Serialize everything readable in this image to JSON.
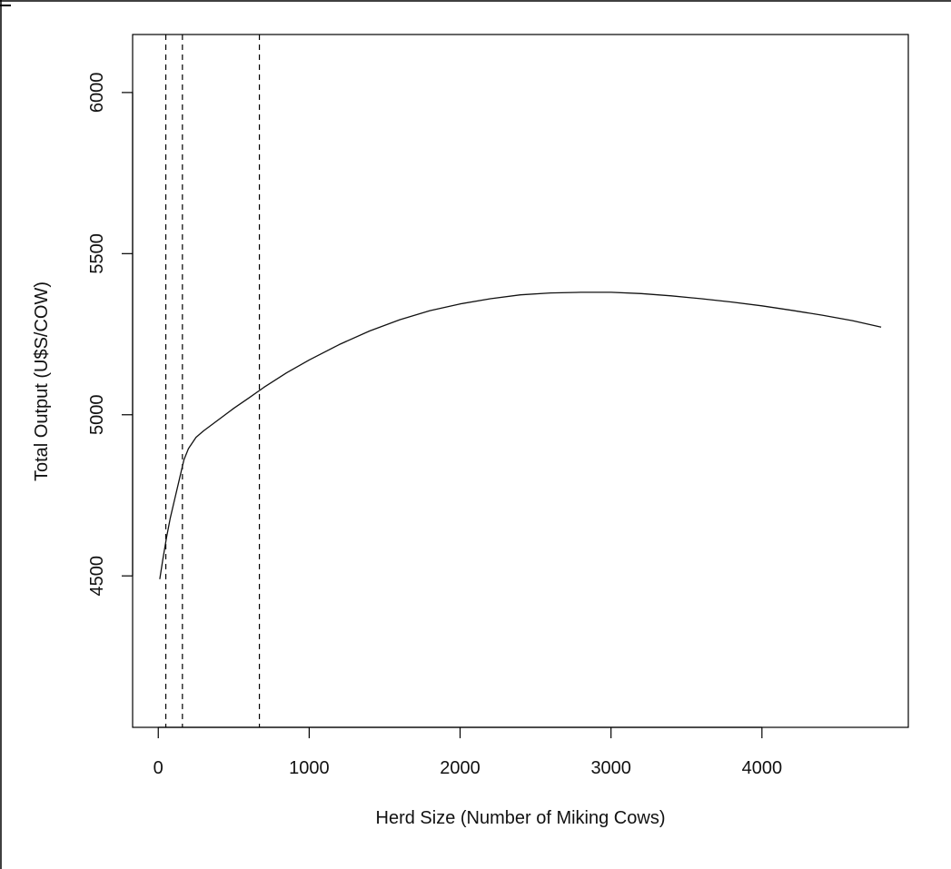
{
  "chart_data": {
    "type": "line",
    "title": "",
    "xlabel": "Herd Size (Number of Miking Cows)",
    "ylabel": "Total Output (U$S/COW)",
    "xlim": [
      -170,
      4970
    ],
    "ylim": [
      4030,
      6180
    ],
    "x_ticks": [
      0,
      1000,
      2000,
      3000,
      4000
    ],
    "x_tick_labels": [
      "0",
      "1000",
      "2000",
      "3000",
      "4000"
    ],
    "y_ticks": [
      4500,
      5000,
      5500,
      6000
    ],
    "y_tick_labels": [
      "4500",
      "5000",
      "5500",
      "6000"
    ],
    "grid": false,
    "legend": "none",
    "colors": {
      "line": "#111111",
      "frame": "#000000"
    },
    "series": [
      {
        "x": [
          10,
          30,
          55,
          80,
          110,
          140,
          170,
          200,
          250,
          300,
          400,
          500,
          600,
          700,
          850,
          1000,
          1200,
          1400,
          1600,
          1800,
          2000,
          2200,
          2400,
          2600,
          2800,
          3000,
          3200,
          3400,
          3600,
          3800,
          4000,
          4200,
          4400,
          4600,
          4790
        ],
        "values": [
          4490,
          4550,
          4620,
          4680,
          4740,
          4800,
          4860,
          4895,
          4930,
          4950,
          4985,
          5020,
          5052,
          5085,
          5130,
          5170,
          5218,
          5260,
          5295,
          5323,
          5344,
          5360,
          5372,
          5378,
          5380,
          5380,
          5376,
          5369,
          5360,
          5350,
          5338,
          5324,
          5309,
          5292,
          5272
        ]
      }
    ],
    "vlines": [
      50,
      160,
      670
    ]
  }
}
